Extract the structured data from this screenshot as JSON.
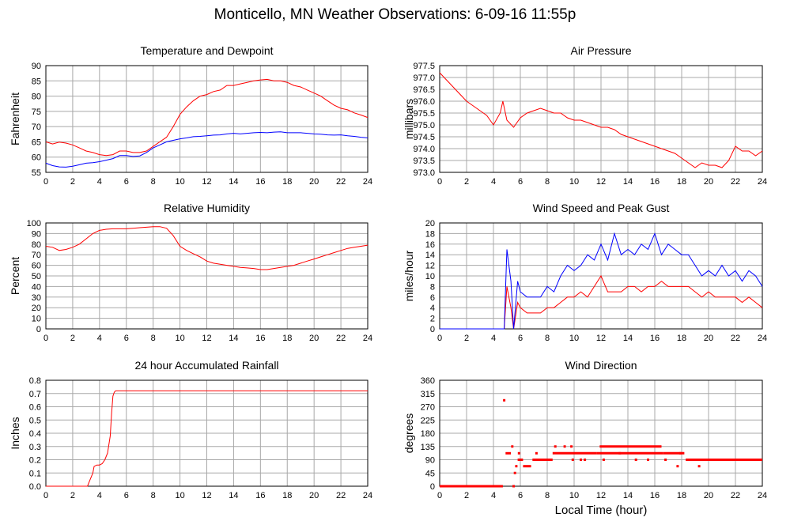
{
  "page_title": "Monticello, MN Weather Observations: 6-09-16 11:55p",
  "chart_data": [
    {
      "id": "temp",
      "type": "line",
      "title": "Temperature and Dewpoint",
      "xlabel": "",
      "ylabel": "Fahrenheit",
      "xlim": [
        0,
        24
      ],
      "ylim": [
        55,
        90
      ],
      "x_ticks": [
        "0",
        "2",
        "4",
        "6",
        "8",
        "10",
        "12",
        "14",
        "16",
        "18",
        "20",
        "22",
        "24"
      ],
      "y_ticks": [
        "55",
        "60",
        "65",
        "70",
        "75",
        "80",
        "85",
        "90"
      ],
      "grid": true,
      "x": [
        0,
        0.5,
        1,
        1.5,
        2,
        2.5,
        3,
        3.5,
        4,
        4.5,
        5,
        5.5,
        6,
        6.5,
        7,
        7.5,
        8,
        8.5,
        9,
        9.5,
        10,
        10.5,
        11,
        11.5,
        12,
        12.5,
        13,
        13.5,
        14,
        14.5,
        15,
        15.5,
        16,
        16.5,
        17,
        17.5,
        18,
        18.5,
        19,
        19.5,
        20,
        20.5,
        21,
        21.5,
        22,
        22.5,
        23,
        23.5,
        24
      ],
      "series": [
        {
          "name": "",
          "color": "#ff0000",
          "values": [
            65,
            64.3,
            64.9,
            64.6,
            64,
            63,
            62,
            61.5,
            60.8,
            60.5,
            60.8,
            62,
            62,
            61.5,
            61.5,
            62,
            63.5,
            65,
            66.5,
            70,
            74,
            76.5,
            78.5,
            80,
            80.5,
            81.5,
            82,
            83.5,
            83.5,
            84,
            84.5,
            85,
            85.3,
            85.5,
            85,
            85,
            84.5,
            83.5,
            83,
            82,
            81,
            80,
            78.5,
            77,
            76,
            75.5,
            74.5,
            73.8,
            73
          ]
        },
        {
          "name": "",
          "color": "#0000ff",
          "values": [
            58,
            57.2,
            56.8,
            56.7,
            57,
            57.5,
            58,
            58.2,
            58.5,
            59,
            59.5,
            60.5,
            60.5,
            60.2,
            60.4,
            61.5,
            63,
            64,
            65,
            65.5,
            66,
            66.3,
            66.7,
            66.8,
            67,
            67.2,
            67.3,
            67.6,
            67.8,
            67.6,
            67.8,
            68,
            68.1,
            68,
            68.2,
            68.3,
            68,
            68,
            68,
            67.8,
            67.6,
            67.5,
            67.3,
            67.2,
            67.3,
            67,
            66.8,
            66.5,
            66.3
          ]
        }
      ]
    },
    {
      "id": "pressure",
      "type": "line",
      "title": "Air Pressure",
      "xlabel": "",
      "ylabel": "millibars",
      "xlim": [
        0,
        24
      ],
      "ylim": [
        973,
        977.5
      ],
      "x_ticks": [
        "0",
        "2",
        "4",
        "6",
        "8",
        "10",
        "12",
        "14",
        "16",
        "18",
        "20",
        "22",
        "24"
      ],
      "y_ticks": [
        "973.0",
        "973.5",
        "974.0",
        "974.5",
        "975.0",
        "975.5",
        "976.0",
        "976.5",
        "977.0",
        "977.5"
      ],
      "grid": true,
      "x": [
        0,
        0.5,
        1,
        1.5,
        2,
        2.5,
        3,
        3.5,
        4,
        4.5,
        4.7,
        5,
        5.5,
        6,
        6.5,
        7,
        7.5,
        8,
        8.5,
        9,
        9.5,
        10,
        10.5,
        11,
        11.5,
        12,
        12.5,
        13,
        13.5,
        14,
        14.5,
        15,
        15.5,
        16,
        16.5,
        17,
        17.5,
        18,
        18.5,
        19,
        19.5,
        20,
        20.5,
        21,
        21.5,
        22,
        22.5,
        23,
        23.5,
        24
      ],
      "series": [
        {
          "name": "",
          "color": "#ff0000",
          "values": [
            977.2,
            976.9,
            976.6,
            976.3,
            976,
            975.8,
            975.6,
            975.4,
            975,
            975.5,
            976,
            975.2,
            974.9,
            975.3,
            975.5,
            975.6,
            975.7,
            975.6,
            975.5,
            975.5,
            975.3,
            975.2,
            975.2,
            975.1,
            975.0,
            974.9,
            974.9,
            974.8,
            974.6,
            974.5,
            974.4,
            974.3,
            974.2,
            974.1,
            974.0,
            973.9,
            973.8,
            973.6,
            973.4,
            973.2,
            973.4,
            973.3,
            973.3,
            973.2,
            973.5,
            974.1,
            973.9,
            973.9,
            973.7,
            973.9
          ]
        }
      ]
    },
    {
      "id": "humidity",
      "type": "line",
      "title": "Relative Humidity",
      "xlabel": "",
      "ylabel": "Percent",
      "xlim": [
        0,
        24
      ],
      "ylim": [
        0,
        100
      ],
      "x_ticks": [
        "0",
        "2",
        "4",
        "6",
        "8",
        "10",
        "12",
        "14",
        "16",
        "18",
        "20",
        "22",
        "24"
      ],
      "y_ticks": [
        "0",
        "10",
        "20",
        "30",
        "40",
        "50",
        "60",
        "70",
        "80",
        "90",
        "100"
      ],
      "grid": true,
      "x": [
        0,
        0.5,
        1,
        1.5,
        2,
        2.5,
        3,
        3.5,
        4,
        4.5,
        5,
        5.5,
        6,
        6.5,
        7,
        7.5,
        8,
        8.5,
        9,
        9.5,
        10,
        10.5,
        11,
        11.5,
        12,
        12.5,
        13,
        13.5,
        14,
        14.5,
        15,
        15.5,
        16,
        16.5,
        17,
        17.5,
        18,
        18.5,
        19,
        19.5,
        20,
        20.5,
        21,
        21.5,
        22,
        22.5,
        23,
        23.5,
        24
      ],
      "series": [
        {
          "name": "",
          "color": "#ff0000",
          "values": [
            78,
            77,
            74,
            75,
            77,
            80,
            85,
            90,
            93,
            94,
            94.5,
            94.5,
            94.5,
            95,
            95.5,
            96,
            96.5,
            96.5,
            95,
            88,
            78,
            74,
            71,
            68,
            64,
            62,
            61,
            60,
            59,
            58,
            57.5,
            57,
            56,
            56,
            57,
            58,
            59,
            60,
            62,
            64,
            66,
            68,
            70,
            72,
            74,
            76,
            77,
            78,
            79
          ]
        }
      ]
    },
    {
      "id": "wind",
      "type": "line",
      "title": "Wind Speed and Peak Gust",
      "xlabel": "",
      "ylabel": "miles/hour",
      "xlim": [
        0,
        24
      ],
      "ylim": [
        0,
        20
      ],
      "x_ticks": [
        "0",
        "2",
        "4",
        "6",
        "8",
        "10",
        "12",
        "14",
        "16",
        "18",
        "20",
        "22",
        "24"
      ],
      "y_ticks": [
        "0",
        "2",
        "4",
        "6",
        "8",
        "10",
        "12",
        "14",
        "16",
        "18",
        "20"
      ],
      "grid": true,
      "x": [
        0,
        4.8,
        5,
        5.3,
        5.5,
        5.8,
        6,
        6.5,
        7,
        7.5,
        8,
        8.5,
        9,
        9.5,
        10,
        10.5,
        11,
        11.5,
        12,
        12.5,
        13,
        13.5,
        14,
        14.5,
        15,
        15.5,
        16,
        16.5,
        17,
        17.5,
        18,
        18.5,
        19,
        19.5,
        20,
        20.5,
        21,
        21.5,
        22,
        22.5,
        23,
        23.5,
        24
      ],
      "series": [
        {
          "name": "",
          "color": "#ff0000",
          "values": [
            0,
            0,
            8,
            4,
            0,
            5,
            4,
            3,
            3,
            3,
            4,
            4,
            5,
            6,
            6,
            7,
            6,
            8,
            10,
            7,
            7,
            7,
            8,
            8,
            7,
            8,
            8,
            9,
            8,
            8,
            8,
            8,
            7,
            6,
            7,
            6,
            6,
            6,
            6,
            5,
            6,
            5,
            4
          ]
        },
        {
          "name": "",
          "color": "#0000ff",
          "values": [
            0,
            0,
            15,
            9,
            0,
            9,
            7,
            6,
            6,
            6,
            8,
            7,
            10,
            12,
            11,
            12,
            14,
            13,
            16,
            13,
            18,
            14,
            15,
            14,
            16,
            15,
            18,
            14,
            16,
            15,
            14,
            14,
            12,
            10,
            11,
            10,
            12,
            10,
            11,
            9,
            11,
            10,
            8
          ]
        }
      ]
    },
    {
      "id": "rain",
      "type": "line",
      "title": "24 hour Accumulated Rainfall",
      "xlabel": "",
      "ylabel": "Inches",
      "xlim": [
        0,
        24
      ],
      "ylim": [
        0,
        0.8
      ],
      "x_ticks": [
        "0",
        "2",
        "4",
        "6",
        "8",
        "10",
        "12",
        "14",
        "16",
        "18",
        "20",
        "22",
        "24"
      ],
      "y_ticks": [
        "0.0",
        "0.1",
        "0.2",
        "0.3",
        "0.4",
        "0.5",
        "0.6",
        "0.7",
        "0.8"
      ],
      "grid": true,
      "x": [
        0,
        3.1,
        3.3,
        3.5,
        3.6,
        3.8,
        4,
        4.2,
        4.4,
        4.6,
        4.8,
        4.9,
        5,
        5.1,
        5.2,
        5.5,
        24
      ],
      "series": [
        {
          "name": "",
          "color": "#ff0000",
          "values": [
            0,
            0,
            0.05,
            0.1,
            0.15,
            0.16,
            0.16,
            0.17,
            0.2,
            0.25,
            0.38,
            0.55,
            0.68,
            0.71,
            0.72,
            0.72,
            0.72
          ]
        }
      ]
    },
    {
      "id": "direction",
      "type": "scatter",
      "title": "Wind Direction",
      "xlabel": "Local Time (hour)",
      "ylabel": "degrees",
      "xlim": [
        0,
        24
      ],
      "ylim": [
        0,
        360
      ],
      "x_ticks": [
        "0",
        "2",
        "4",
        "6",
        "8",
        "10",
        "12",
        "14",
        "16",
        "18",
        "20",
        "22",
        "24"
      ],
      "y_ticks": [
        "0",
        "45",
        "90",
        "135",
        "180",
        "225",
        "270",
        "315",
        "360"
      ],
      "grid": true,
      "series": [
        {
          "name": "",
          "color": "#ff0000",
          "segments": [
            {
              "x_start": 0,
              "x_end": 4.7,
              "y": 0
            },
            {
              "x_start": 4.9,
              "x_end": 5.3,
              "y": 112
            },
            {
              "x_start": 5.8,
              "x_end": 6.2,
              "y": 90
            },
            {
              "x_start": 6.2,
              "x_end": 6.8,
              "y": 68
            },
            {
              "x_start": 6.9,
              "x_end": 8.4,
              "y": 90
            },
            {
              "x_start": 8.4,
              "x_end": 11.7,
              "y": 112
            },
            {
              "x_start": 11.7,
              "x_end": 16.6,
              "y": 112
            },
            {
              "x_start": 11.9,
              "x_end": 16.5,
              "y": 135
            },
            {
              "x_start": 16.6,
              "x_end": 18.2,
              "y": 112
            },
            {
              "x_start": 18.3,
              "x_end": 24,
              "y": 90
            }
          ],
          "points": [
            [
              4.8,
              292
            ],
            [
              5.4,
              135
            ],
            [
              5.5,
              0
            ],
            [
              5.6,
              45
            ],
            [
              5.7,
              68
            ],
            [
              5.9,
              112
            ],
            [
              7.2,
              112
            ],
            [
              8.6,
              135
            ],
            [
              9.3,
              135
            ],
            [
              9.8,
              135
            ],
            [
              9.9,
              90
            ],
            [
              10.5,
              90
            ],
            [
              10.8,
              90
            ],
            [
              12.2,
              90
            ],
            [
              13.4,
              112
            ],
            [
              14.6,
              90
            ],
            [
              15.5,
              90
            ],
            [
              16.8,
              90
            ],
            [
              17.7,
              68
            ],
            [
              17.9,
              112
            ],
            [
              19.3,
              68
            ]
          ]
        }
      ]
    }
  ]
}
